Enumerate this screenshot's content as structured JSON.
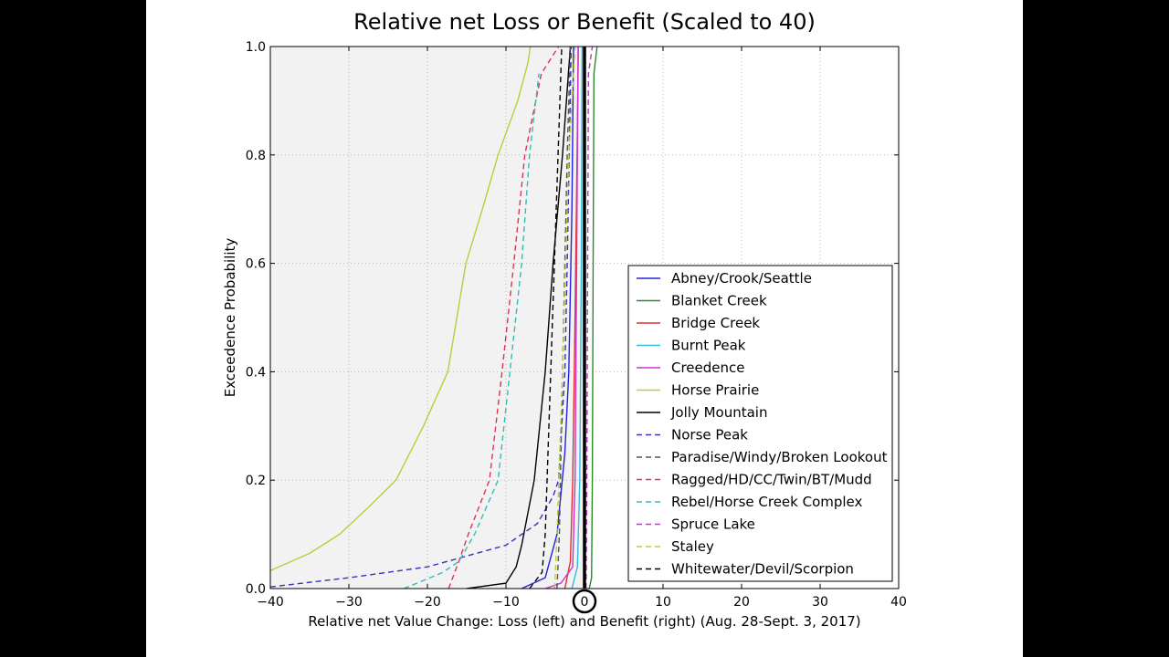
{
  "chart_data": {
    "type": "line",
    "title": "Relative net Loss or Benefit (Scaled to 40)",
    "xlabel": "Relative net Value Change: Loss (left) and Benefit (right) (Aug. 28-Sept. 3, 2017)",
    "ylabel": "Exceedence Probability",
    "xlim": [
      -40,
      40
    ],
    "ylim": [
      0,
      1.0
    ],
    "xticks": [
      -40,
      -30,
      -20,
      -10,
      0,
      10,
      20,
      30,
      40
    ],
    "xtick_labels": [
      "−40",
      "−30",
      "−20",
      "−10",
      "0",
      "10",
      "20",
      "30",
      "40"
    ],
    "yticks": [
      0,
      0.2,
      0.4,
      0.6,
      0.8,
      1.0
    ],
    "ytick_labels": [
      "0.0",
      "0.2",
      "0.4",
      "0.6",
      "0.8",
      "1.0"
    ],
    "grid": true,
    "legend_position": "lower-right",
    "annotations": [
      "loss region (x<0) shaded light gray",
      "thick black vertical line at x=0",
      "circle around 0 tick label"
    ],
    "series": [
      {
        "name": "Abney/Crook/Seattle",
        "color": "#2222dd",
        "dash": false,
        "points": [
          [
            -8,
            0
          ],
          [
            -5,
            0.02
          ],
          [
            -3.5,
            0.1
          ],
          [
            -2.5,
            0.25
          ],
          [
            -2,
            0.4
          ],
          [
            -1.6,
            0.7
          ],
          [
            -1.4,
            1.0
          ]
        ]
      },
      {
        "name": "Blanket Creek",
        "color": "#2a8a2a",
        "dash": false,
        "points": [
          [
            0.6,
            0
          ],
          [
            0.9,
            0.02
          ],
          [
            1.0,
            0.2
          ],
          [
            1.1,
            0.6
          ],
          [
            1.2,
            0.95
          ],
          [
            1.6,
            1.0
          ]
        ]
      },
      {
        "name": "Bridge Creek",
        "color": "#e03030",
        "dash": false,
        "points": [
          [
            -2.5,
            0
          ],
          [
            -1.8,
            0.05
          ],
          [
            -1.5,
            0.2
          ],
          [
            -1.2,
            0.5
          ],
          [
            -0.9,
            0.85
          ],
          [
            -0.8,
            1.0
          ]
        ]
      },
      {
        "name": "Burnt Peak",
        "color": "#33bbdd",
        "dash": false,
        "points": [
          [
            -1.6,
            0
          ],
          [
            -0.9,
            0.04
          ],
          [
            -0.6,
            0.2
          ],
          [
            -0.4,
            0.6
          ],
          [
            -0.3,
            1.0
          ]
        ]
      },
      {
        "name": "Creedence",
        "color": "#cc33cc",
        "dash": false,
        "points": [
          [
            -5,
            0
          ],
          [
            -3,
            0.01
          ],
          [
            -1.5,
            0.04
          ],
          [
            -1.2,
            0.2
          ],
          [
            -1.0,
            0.6
          ],
          [
            -0.8,
            1.0
          ]
        ]
      },
      {
        "name": "Horse Prairie",
        "color": "#bccc3a",
        "dash": false,
        "points": [
          [
            -40,
            0.033
          ],
          [
            -35,
            0.065
          ],
          [
            -31.2,
            0.1
          ],
          [
            -27.5,
            0.15
          ],
          [
            -24,
            0.2
          ],
          [
            -20.5,
            0.3
          ],
          [
            -17.4,
            0.4
          ],
          [
            -15.1,
            0.6
          ],
          [
            -13,
            0.7
          ],
          [
            -11,
            0.8
          ],
          [
            -8.5,
            0.9
          ],
          [
            -7.2,
            0.97
          ],
          [
            -6.9,
            1.0
          ]
        ]
      },
      {
        "name": "Jolly Mountain",
        "color": "#000000",
        "dash": false,
        "points": [
          [
            -15,
            0
          ],
          [
            -10,
            0.01
          ],
          [
            -8.7,
            0.04
          ],
          [
            -8.0,
            0.08
          ],
          [
            -6.4,
            0.2
          ],
          [
            -5,
            0.4
          ],
          [
            -4,
            0.6
          ],
          [
            -2.8,
            0.8
          ],
          [
            -1.8,
            1.0
          ]
        ]
      },
      {
        "name": "Norse Peak",
        "color": "#3333bb",
        "dash": true,
        "points": [
          [
            -40,
            0.003
          ],
          [
            -30,
            0.02
          ],
          [
            -20,
            0.04
          ],
          [
            -15,
            0.06
          ],
          [
            -10,
            0.08
          ],
          [
            -6,
            0.12
          ],
          [
            -4,
            0.17
          ],
          [
            -3.3,
            0.2
          ],
          [
            -2.5,
            0.4
          ],
          [
            -2.2,
            0.6
          ],
          [
            -1.7,
            1.0
          ]
        ]
      },
      {
        "name": "Paradise/Windy/Broken Lookout",
        "color": "#555555",
        "dash": true,
        "points": [
          [
            -3.5,
            0
          ],
          [
            -3.2,
            0.1
          ],
          [
            -2.8,
            0.4
          ],
          [
            -2.2,
            0.8
          ],
          [
            -1.8,
            1.0
          ]
        ]
      },
      {
        "name": "Ragged/HD/CC/Twin/BT/Mudd",
        "color": "#dd3355",
        "dash": true,
        "points": [
          [
            -17.3,
            0
          ],
          [
            -16,
            0.05
          ],
          [
            -14.8,
            0.1
          ],
          [
            -12.1,
            0.2
          ],
          [
            -10.5,
            0.4
          ],
          [
            -9,
            0.6
          ],
          [
            -7.6,
            0.8
          ],
          [
            -5.5,
            0.95
          ],
          [
            -3.3,
            1.0
          ]
        ]
      },
      {
        "name": "Rebel/Horse Creek Complex",
        "color": "#33bbbb",
        "dash": true,
        "points": [
          [
            -23,
            0
          ],
          [
            -18,
            0.03
          ],
          [
            -16,
            0.05
          ],
          [
            -14,
            0.1
          ],
          [
            -11,
            0.2
          ],
          [
            -9.5,
            0.4
          ],
          [
            -8,
            0.6
          ],
          [
            -7,
            0.8
          ],
          [
            -5.8,
            0.95
          ]
        ]
      },
      {
        "name": "Spruce Lake",
        "color": "#aa44aa",
        "dash": true,
        "points": [
          [
            0.2,
            0
          ],
          [
            0.3,
            0.2
          ],
          [
            0.4,
            0.6
          ],
          [
            0.5,
            0.95
          ],
          [
            1.0,
            1.0
          ]
        ]
      },
      {
        "name": "Staley",
        "color": "#bbcc33",
        "dash": true,
        "points": [
          [
            -3.8,
            0
          ],
          [
            -3.5,
            0.1
          ],
          [
            -2.8,
            0.4
          ],
          [
            -2,
            0.8
          ],
          [
            -1.2,
            1.0
          ]
        ]
      },
      {
        "name": "Whitewater/Devil/Scorpion",
        "color": "#000000",
        "dash": true,
        "points": [
          [
            -7,
            0
          ],
          [
            -5.4,
            0.03
          ],
          [
            -5,
            0.1
          ],
          [
            -4.3,
            0.4
          ],
          [
            -3.6,
            0.7
          ],
          [
            -2.9,
            1.0
          ]
        ]
      }
    ]
  }
}
